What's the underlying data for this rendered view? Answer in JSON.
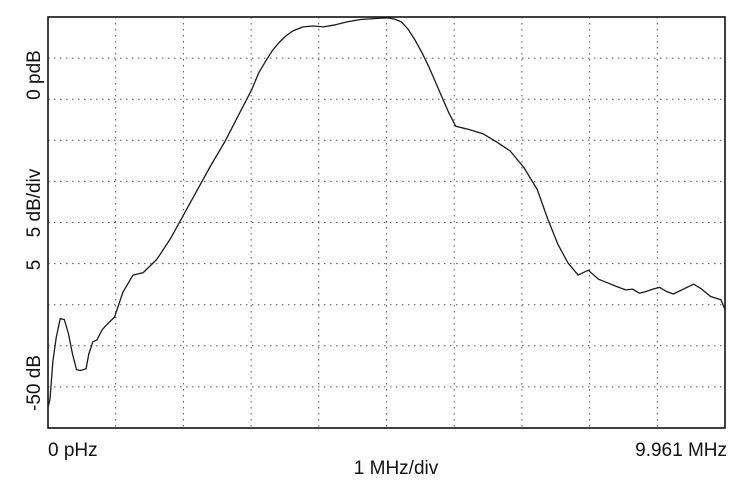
{
  "chart_data": {
    "type": "line",
    "title": "",
    "xlabel": "1 MHz/div",
    "ylabel": "5 dB/div",
    "x_start_label": "0 pHz",
    "x_end_label": "9.961 MHz",
    "y_top_label": "0 pdB",
    "y_bottom_label": "-50 dB",
    "y_mid_label": "5 dB/div",
    "y_div_label": "5",
    "xlim": [
      0,
      9.961
    ],
    "ylim": [
      -50,
      0
    ],
    "x_divisions": 10,
    "y_divisions": 10,
    "grid": true,
    "legend": "none",
    "line_color": "#1a1a1a",
    "series": [
      {
        "x": [
          0,
          0.03,
          0.07,
          0.12,
          0.18,
          0.24,
          0.3,
          0.36,
          0.42,
          0.48,
          0.52,
          0.56,
          0.6,
          0.66,
          0.72,
          0.8,
          0.88,
          0.98,
          1.1,
          1.25,
          1.4,
          1.6,
          1.8,
          2.0,
          2.2,
          2.4,
          2.6,
          2.8,
          3.0,
          3.1,
          3.2,
          3.3,
          3.4,
          3.5,
          3.6,
          3.75,
          3.9,
          4.05,
          4.2,
          4.4,
          4.6,
          4.8,
          5.0,
          5.1,
          5.2,
          5.3,
          5.4,
          5.5,
          5.6,
          5.7,
          5.8,
          5.9,
          6.0,
          6.2,
          6.4,
          6.6,
          6.8,
          7.0,
          7.2,
          7.35,
          7.5,
          7.65,
          7.8,
          7.95,
          8.1,
          8.25,
          8.4,
          8.5,
          8.6,
          8.7,
          8.8,
          8.9,
          9.0,
          9.1,
          9.2,
          9.35,
          9.5,
          9.6,
          9.75,
          9.9,
          9.961
        ],
        "y": [
          -47.5,
          -46.5,
          -42.0,
          -39.0,
          -36.7,
          -36.8,
          -38.5,
          -41.0,
          -42.9,
          -43.0,
          -42.9,
          -42.8,
          -41.0,
          -39.5,
          -39.3,
          -38.0,
          -37.3,
          -36.5,
          -33.5,
          -31.4,
          -31.1,
          -29.5,
          -27.0,
          -24.0,
          -21.0,
          -18.0,
          -15.2,
          -12.0,
          -8.8,
          -6.8,
          -5.4,
          -4.1,
          -3.1,
          -2.3,
          -1.7,
          -1.2,
          -1.1,
          -1.2,
          -1.0,
          -0.6,
          -0.3,
          -0.2,
          -0.1,
          -0.25,
          -0.6,
          -1.5,
          -2.8,
          -4.3,
          -6.0,
          -7.9,
          -9.8,
          -11.7,
          -13.3,
          -13.7,
          -14.2,
          -15.2,
          -16.3,
          -18.3,
          -21.0,
          -24.5,
          -27.6,
          -29.9,
          -31.4,
          -30.8,
          -31.9,
          -32.4,
          -32.9,
          -33.2,
          -33.1,
          -33.6,
          -33.4,
          -33.1,
          -32.9,
          -33.4,
          -33.7,
          -33.1,
          -32.5,
          -33.0,
          -34.0,
          -34.4,
          -35.6
        ]
      }
    ]
  }
}
